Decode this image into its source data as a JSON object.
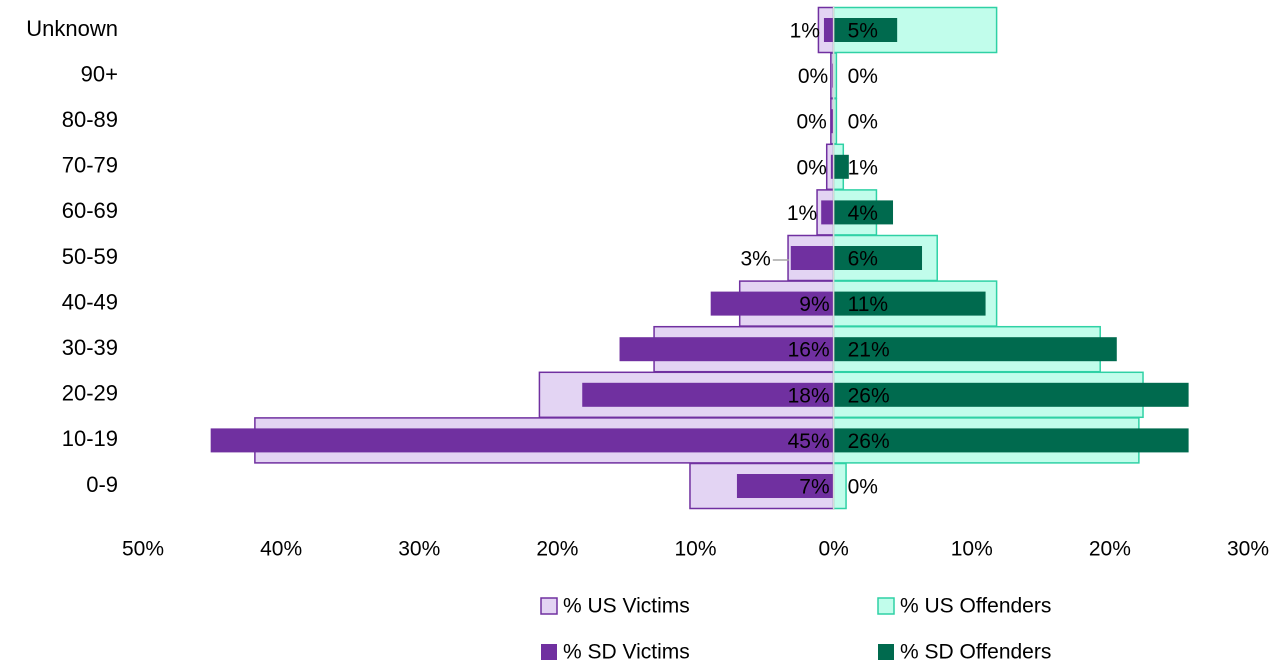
{
  "chart_data": {
    "type": "pyramid",
    "categories": [
      "Unknown",
      "90+",
      "80-89",
      "70-79",
      "60-69",
      "50-59",
      "40-49",
      "30-39",
      "20-29",
      "10-19",
      "0-9"
    ],
    "series": [
      {
        "name": "% US Victims",
        "color": "#e3d4f3",
        "edge": "#7030a0",
        "style": "wide",
        "values": [
          -1.1,
          -0.2,
          -0.2,
          -0.5,
          -1.2,
          -3.3,
          -6.8,
          -13.0,
          -21.3,
          -41.9,
          -10.4
        ]
      },
      {
        "name": "% US Offenders",
        "color": "#c1fdeb",
        "edge": "#2fd1a5",
        "style": "wide",
        "values": [
          11.8,
          0.2,
          0.2,
          0.7,
          3.1,
          7.5,
          11.8,
          19.3,
          22.4,
          22.1,
          0.9
        ]
      },
      {
        "name": "% SD Victims",
        "color": "#7030a0",
        "style": "narrow",
        "values": [
          -0.7,
          -0.1,
          -0.2,
          -0.2,
          -0.9,
          -3.1,
          -8.9,
          -15.5,
          -18.2,
          -45.1,
          -7.0
        ],
        "value_labels": [
          "1%",
          "0%",
          "0%",
          "0%",
          "1%",
          "3%",
          "9%",
          "16%",
          "18%",
          "45%",
          "7%"
        ]
      },
      {
        "name": "% SD Offenders",
        "color": "#006a4e",
        "style": "narrow",
        "values": [
          4.6,
          0.0,
          0.0,
          1.1,
          4.3,
          6.4,
          11.0,
          20.5,
          25.7,
          25.7,
          0.0
        ],
        "value_labels": [
          "5%",
          "0%",
          "0%",
          "1%",
          "4%",
          "6%",
          "11%",
          "21%",
          "26%",
          "26%",
          "0%"
        ]
      }
    ],
    "xlim": [
      -50,
      30
    ],
    "xticks": [
      {
        "value": -50,
        "label": "50%"
      },
      {
        "value": -40,
        "label": "40%"
      },
      {
        "value": -30,
        "label": "30%"
      },
      {
        "value": -20,
        "label": "20%"
      },
      {
        "value": -10,
        "label": "10%"
      },
      {
        "value": 0,
        "label": "0%"
      },
      {
        "value": 10,
        "label": "10%"
      },
      {
        "value": 20,
        "label": "20%"
      },
      {
        "value": 30,
        "label": "30%"
      }
    ],
    "grid": false,
    "legend": "bottom"
  }
}
